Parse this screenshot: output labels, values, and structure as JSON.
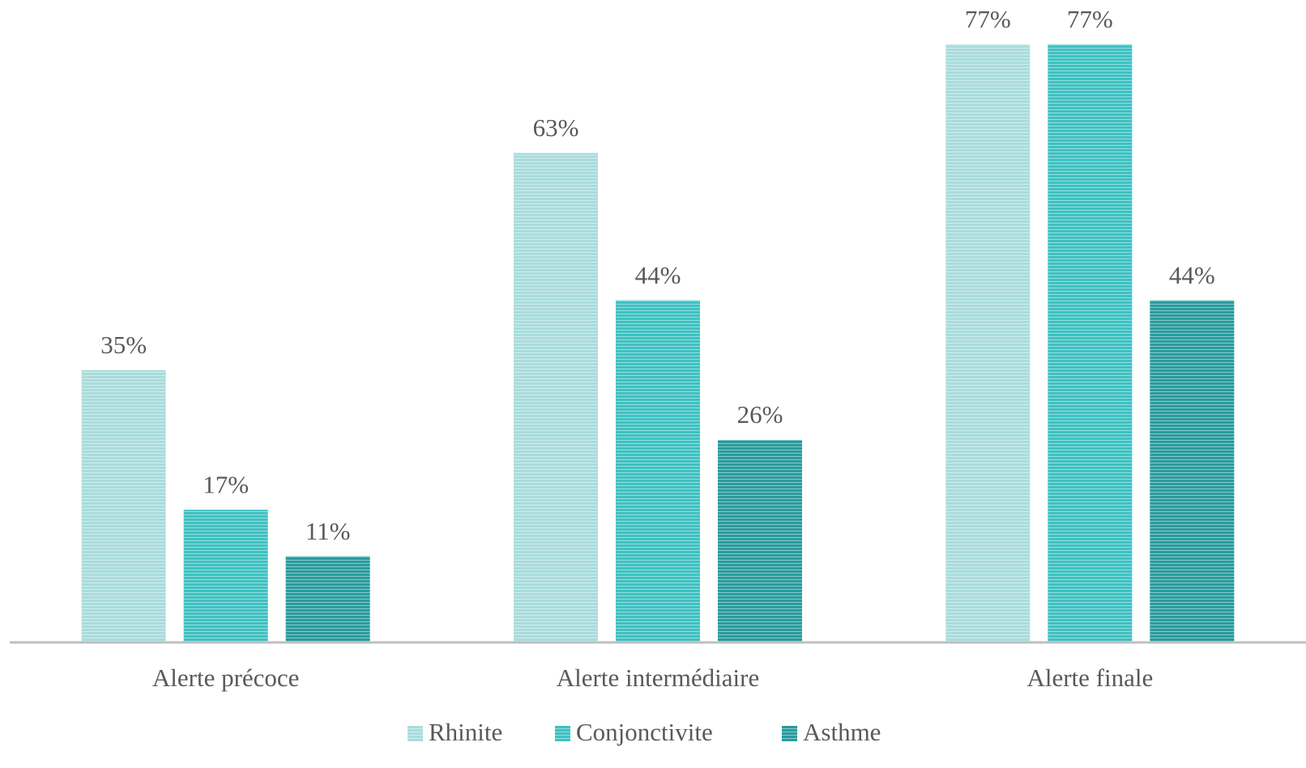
{
  "chart_data": {
    "type": "bar",
    "categories": [
      "Alerte précoce",
      "Alerte intermédiaire",
      "Alerte finale"
    ],
    "series": [
      {
        "name": "Rhinite",
        "color": "#a9dcdc",
        "values": [
          35,
          63,
          77
        ],
        "value_labels": [
          "35%",
          "63%",
          "77%"
        ]
      },
      {
        "name": "Conjonctivite",
        "color": "#3fc1c2",
        "values": [
          17,
          44,
          77
        ],
        "value_labels": [
          "17%",
          "44%",
          "77%"
        ]
      },
      {
        "name": "Asthme",
        "color": "#2a9b9d",
        "values": [
          11,
          26,
          44
        ],
        "value_labels": [
          "11%",
          "26%",
          "44%"
        ]
      }
    ],
    "ylim": [
      0,
      80
    ],
    "legend": "bottom"
  }
}
